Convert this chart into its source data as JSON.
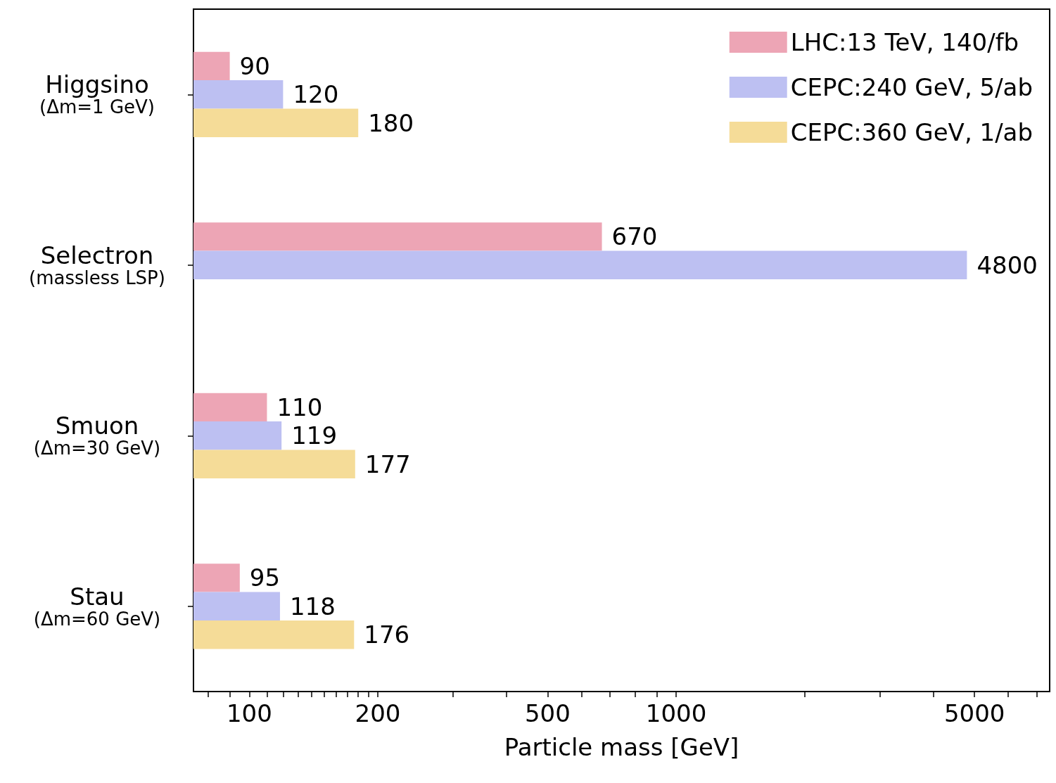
{
  "chart_data": {
    "type": "bar",
    "orientation": "horizontal",
    "log": "x",
    "xlabel": "Particle mass [GeV]",
    "categories": [
      "Higgsino\n(Δm=1 GeV)",
      "Selectron\n(massless LSP)",
      "Smuon\n(Δm=30 GeV)",
      "Stau\n(Δm=60 GeV)"
    ],
    "series": [
      {
        "name": "LHC:13 TeV, 140/fb",
        "color": "#eda5b5",
        "values": [
          90,
          670,
          110,
          95
        ]
      },
      {
        "name": "CEPC:240 GeV, 5/ab",
        "color": "#bdc0f2",
        "values": [
          120,
          4800,
          119,
          118
        ]
      },
      {
        "name": "CEPC:360 GeV, 1/ab",
        "color": "#f5dc98",
        "values": [
          180,
          null,
          177,
          176
        ]
      }
    ],
    "xlim": [
      74,
      7500
    ],
    "xticks": [
      {
        "value": 80,
        "label": null
      },
      {
        "value": 90,
        "label": null
      },
      100,
      {
        "value": 110,
        "label": null
      },
      {
        "value": 120,
        "label": null
      },
      {
        "value": 130,
        "label": null
      },
      {
        "value": 140,
        "label": null
      },
      {
        "value": 150,
        "label": null
      },
      {
        "value": 160,
        "label": null
      },
      {
        "value": 170,
        "label": null
      },
      {
        "value": 180,
        "label": null
      },
      {
        "value": 190,
        "label": null
      },
      200,
      {
        "value": 300,
        "label": null
      },
      {
        "value": 400,
        "label": null
      },
      500,
      {
        "value": 600,
        "label": null
      },
      {
        "value": 700,
        "label": null
      },
      {
        "value": 800,
        "label": null
      },
      {
        "value": 900,
        "label": null
      },
      1000,
      {
        "value": 2000,
        "label": null
      },
      {
        "value": 3000,
        "label": null
      },
      {
        "value": 4000,
        "label": null
      },
      5000,
      {
        "value": 6000,
        "label": null
      },
      {
        "value": 7000,
        "label": null
      }
    ],
    "data_labels": true,
    "legend": "top right",
    "grid": false
  }
}
